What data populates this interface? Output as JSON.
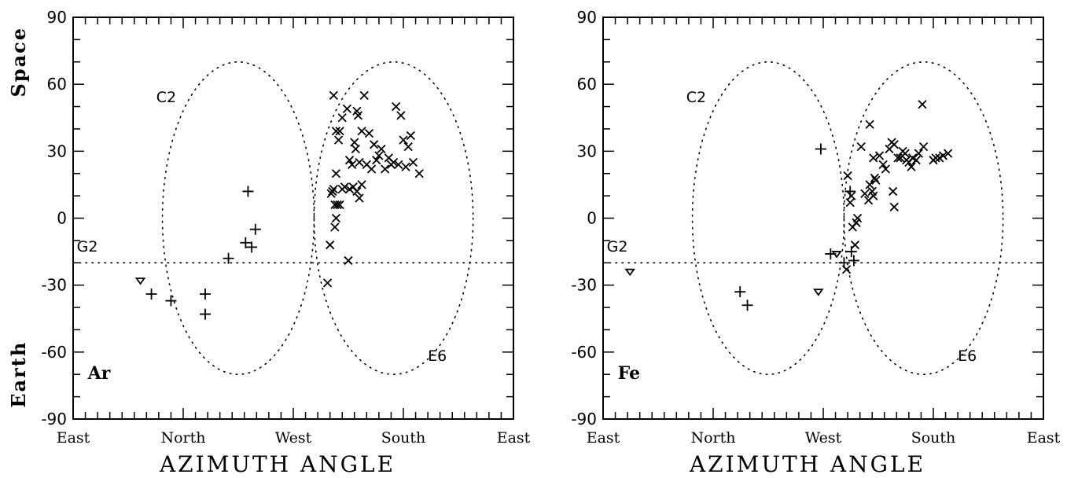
{
  "chart_data": [
    {
      "type": "scatter",
      "element_label": "Ar",
      "xlabel": "AZIMUTH ANGLE",
      "ylabel_top": "Space",
      "ylabel_bottom": "Earth",
      "xlim": [
        0,
        360
      ],
      "ylim": [
        -90,
        90
      ],
      "x_tick_labels": [
        {
          "x": 0,
          "label": "East"
        },
        {
          "x": 90,
          "label": "North"
        },
        {
          "x": 180,
          "label": "West"
        },
        {
          "x": 270,
          "label": "South"
        },
        {
          "x": 360,
          "label": "East"
        }
      ],
      "y_tick_labels": [
        {
          "y": 90,
          "label": "90"
        },
        {
          "y": 60,
          "label": "60"
        },
        {
          "y": 30,
          "label": "30"
        },
        {
          "y": 0,
          "label": "0"
        },
        {
          "y": -30,
          "label": "-30"
        },
        {
          "y": -60,
          "label": "-60"
        },
        {
          "y": -90,
          "label": "-90"
        }
      ],
      "annotations": [
        {
          "text": "C2",
          "x": 68,
          "y": 52
        },
        {
          "text": "G2",
          "x": 3,
          "y": -15
        },
        {
          "text": "E6",
          "x": 290,
          "y": -64
        }
      ],
      "regions": [
        {
          "name": "C2",
          "cx": 135,
          "cy": 0,
          "rx": 62,
          "ry": 70
        },
        {
          "name": "E6",
          "cx": 262,
          "cy": 0,
          "rx": 65,
          "ry": 70
        }
      ],
      "reference_line_y": -20,
      "series": [
        {
          "marker": "x",
          "points": [
            [
              213,
              55
            ],
            [
              215,
              39
            ],
            [
              217,
              35
            ],
            [
              218,
              39
            ],
            [
              220,
              45
            ],
            [
              224,
              49
            ],
            [
              226,
              26
            ],
            [
              228,
              24
            ],
            [
              230,
              34
            ],
            [
              232,
              48
            ],
            [
              233,
              46
            ],
            [
              231,
              31
            ],
            [
              236,
              39
            ],
            [
              238,
              55
            ],
            [
              234,
              25
            ],
            [
              229,
              14
            ],
            [
              232,
              12
            ],
            [
              234,
              9
            ],
            [
              236,
              15
            ],
            [
              240,
              24
            ],
            [
              244,
              22
            ],
            [
              248,
              26
            ],
            [
              252,
              31
            ],
            [
              255,
              22
            ],
            [
              262,
              25
            ],
            [
              264,
              50
            ],
            [
              268,
              46
            ],
            [
              270,
              35
            ],
            [
              272,
              23
            ],
            [
              274,
              32
            ],
            [
              276,
              37
            ],
            [
              278,
              25
            ],
            [
              283,
              20
            ],
            [
              250,
              28
            ],
            [
              266,
              24
            ],
            [
              226,
              13
            ],
            [
              222,
              14
            ],
            [
              220,
              13
            ],
            [
              215,
              20
            ],
            [
              213,
              13
            ],
            [
              212,
              12
            ],
            [
              211,
              11
            ],
            [
              214,
              6
            ],
            [
              216,
              6
            ],
            [
              218,
              6
            ],
            [
              215,
              0
            ],
            [
              214,
              -4
            ],
            [
              210,
              -12
            ],
            [
              225,
              -19
            ],
            [
              208,
              -29
            ],
            [
              246,
              33
            ],
            [
              242,
              38
            ],
            [
              258,
              27
            ],
            [
              260,
              24
            ]
          ]
        },
        {
          "marker": "+",
          "points": [
            [
              64,
              -34
            ],
            [
              80,
              -37
            ],
            [
              108,
              -34
            ],
            [
              108,
              -43
            ],
            [
              127,
              -18
            ],
            [
              143,
              12
            ],
            [
              141,
              -11
            ],
            [
              146,
              -13
            ],
            [
              149,
              -5
            ]
          ]
        },
        {
          "marker": "triangle",
          "points": [
            [
              55,
              -28
            ]
          ]
        }
      ]
    },
    {
      "type": "scatter",
      "element_label": "Fe",
      "xlabel": "AZIMUTH ANGLE",
      "ylabel_top": "",
      "ylabel_bottom": "",
      "xlim": [
        0,
        360
      ],
      "ylim": [
        -90,
        90
      ],
      "x_tick_labels": [
        {
          "x": 0,
          "label": "East"
        },
        {
          "x": 90,
          "label": "North"
        },
        {
          "x": 180,
          "label": "West"
        },
        {
          "x": 270,
          "label": "South"
        },
        {
          "x": 360,
          "label": "East"
        }
      ],
      "y_tick_labels": [
        {
          "y": 90,
          "label": "90"
        },
        {
          "y": 60,
          "label": "60"
        },
        {
          "y": 30,
          "label": "30"
        },
        {
          "y": 0,
          "label": "0"
        },
        {
          "y": -30,
          "label": "-30"
        },
        {
          "y": -60,
          "label": "-60"
        },
        {
          "y": -90,
          "label": "-90"
        }
      ],
      "annotations": [
        {
          "text": "C2",
          "x": 68,
          "y": 52
        },
        {
          "text": "G2",
          "x": 3,
          "y": -15
        },
        {
          "text": "E6",
          "x": 290,
          "y": -64
        }
      ],
      "regions": [
        {
          "name": "C2",
          "cx": 135,
          "cy": 0,
          "rx": 62,
          "ry": 70
        },
        {
          "name": "E6",
          "cx": 262,
          "cy": 0,
          "rx": 65,
          "ry": 70
        }
      ],
      "reference_line_y": -20,
      "series": [
        {
          "marker": "x",
          "points": [
            [
              200,
              19
            ],
            [
              203,
              10
            ],
            [
              202,
              7
            ],
            [
              204,
              -4
            ],
            [
              207,
              -2
            ],
            [
              208,
              0
            ],
            [
              206,
              -12
            ],
            [
              211,
              32
            ],
            [
              214,
              11
            ],
            [
              217,
              8
            ],
            [
              218,
              15
            ],
            [
              220,
              12
            ],
            [
              221,
              10
            ],
            [
              222,
              18
            ],
            [
              223,
              17
            ],
            [
              218,
              42
            ],
            [
              221,
              27
            ],
            [
              229,
              24
            ],
            [
              231,
              22
            ],
            [
              234,
              31
            ],
            [
              236,
              34
            ],
            [
              238,
              33
            ],
            [
              237,
              12
            ],
            [
              238,
              5
            ],
            [
              241,
              27
            ],
            [
              243,
              27
            ],
            [
              247,
              29
            ],
            [
              248,
              26
            ],
            [
              250,
              25
            ],
            [
              253,
              27
            ],
            [
              256,
              26
            ],
            [
              258,
              29
            ],
            [
              261,
              51
            ],
            [
              262,
              32
            ],
            [
              270,
              26
            ],
            [
              272,
              27
            ],
            [
              275,
              27
            ],
            [
              278,
              28
            ],
            [
              282,
              29
            ],
            [
              245,
              30
            ],
            [
              252,
              23
            ],
            [
              226,
              28
            ],
            [
              199,
              -23
            ]
          ]
        },
        {
          "marker": "+",
          "points": [
            [
              178,
              31
            ],
            [
              202,
              12
            ],
            [
              197,
              -20
            ],
            [
              203,
              -15
            ],
            [
              205,
              -19
            ],
            [
              186,
              -16
            ],
            [
              112,
              -33
            ],
            [
              118,
              -39
            ]
          ]
        },
        {
          "marker": "triangle",
          "points": [
            [
              22,
              -24
            ],
            [
              191,
              -16
            ],
            [
              176,
              -33
            ]
          ]
        }
      ]
    }
  ]
}
